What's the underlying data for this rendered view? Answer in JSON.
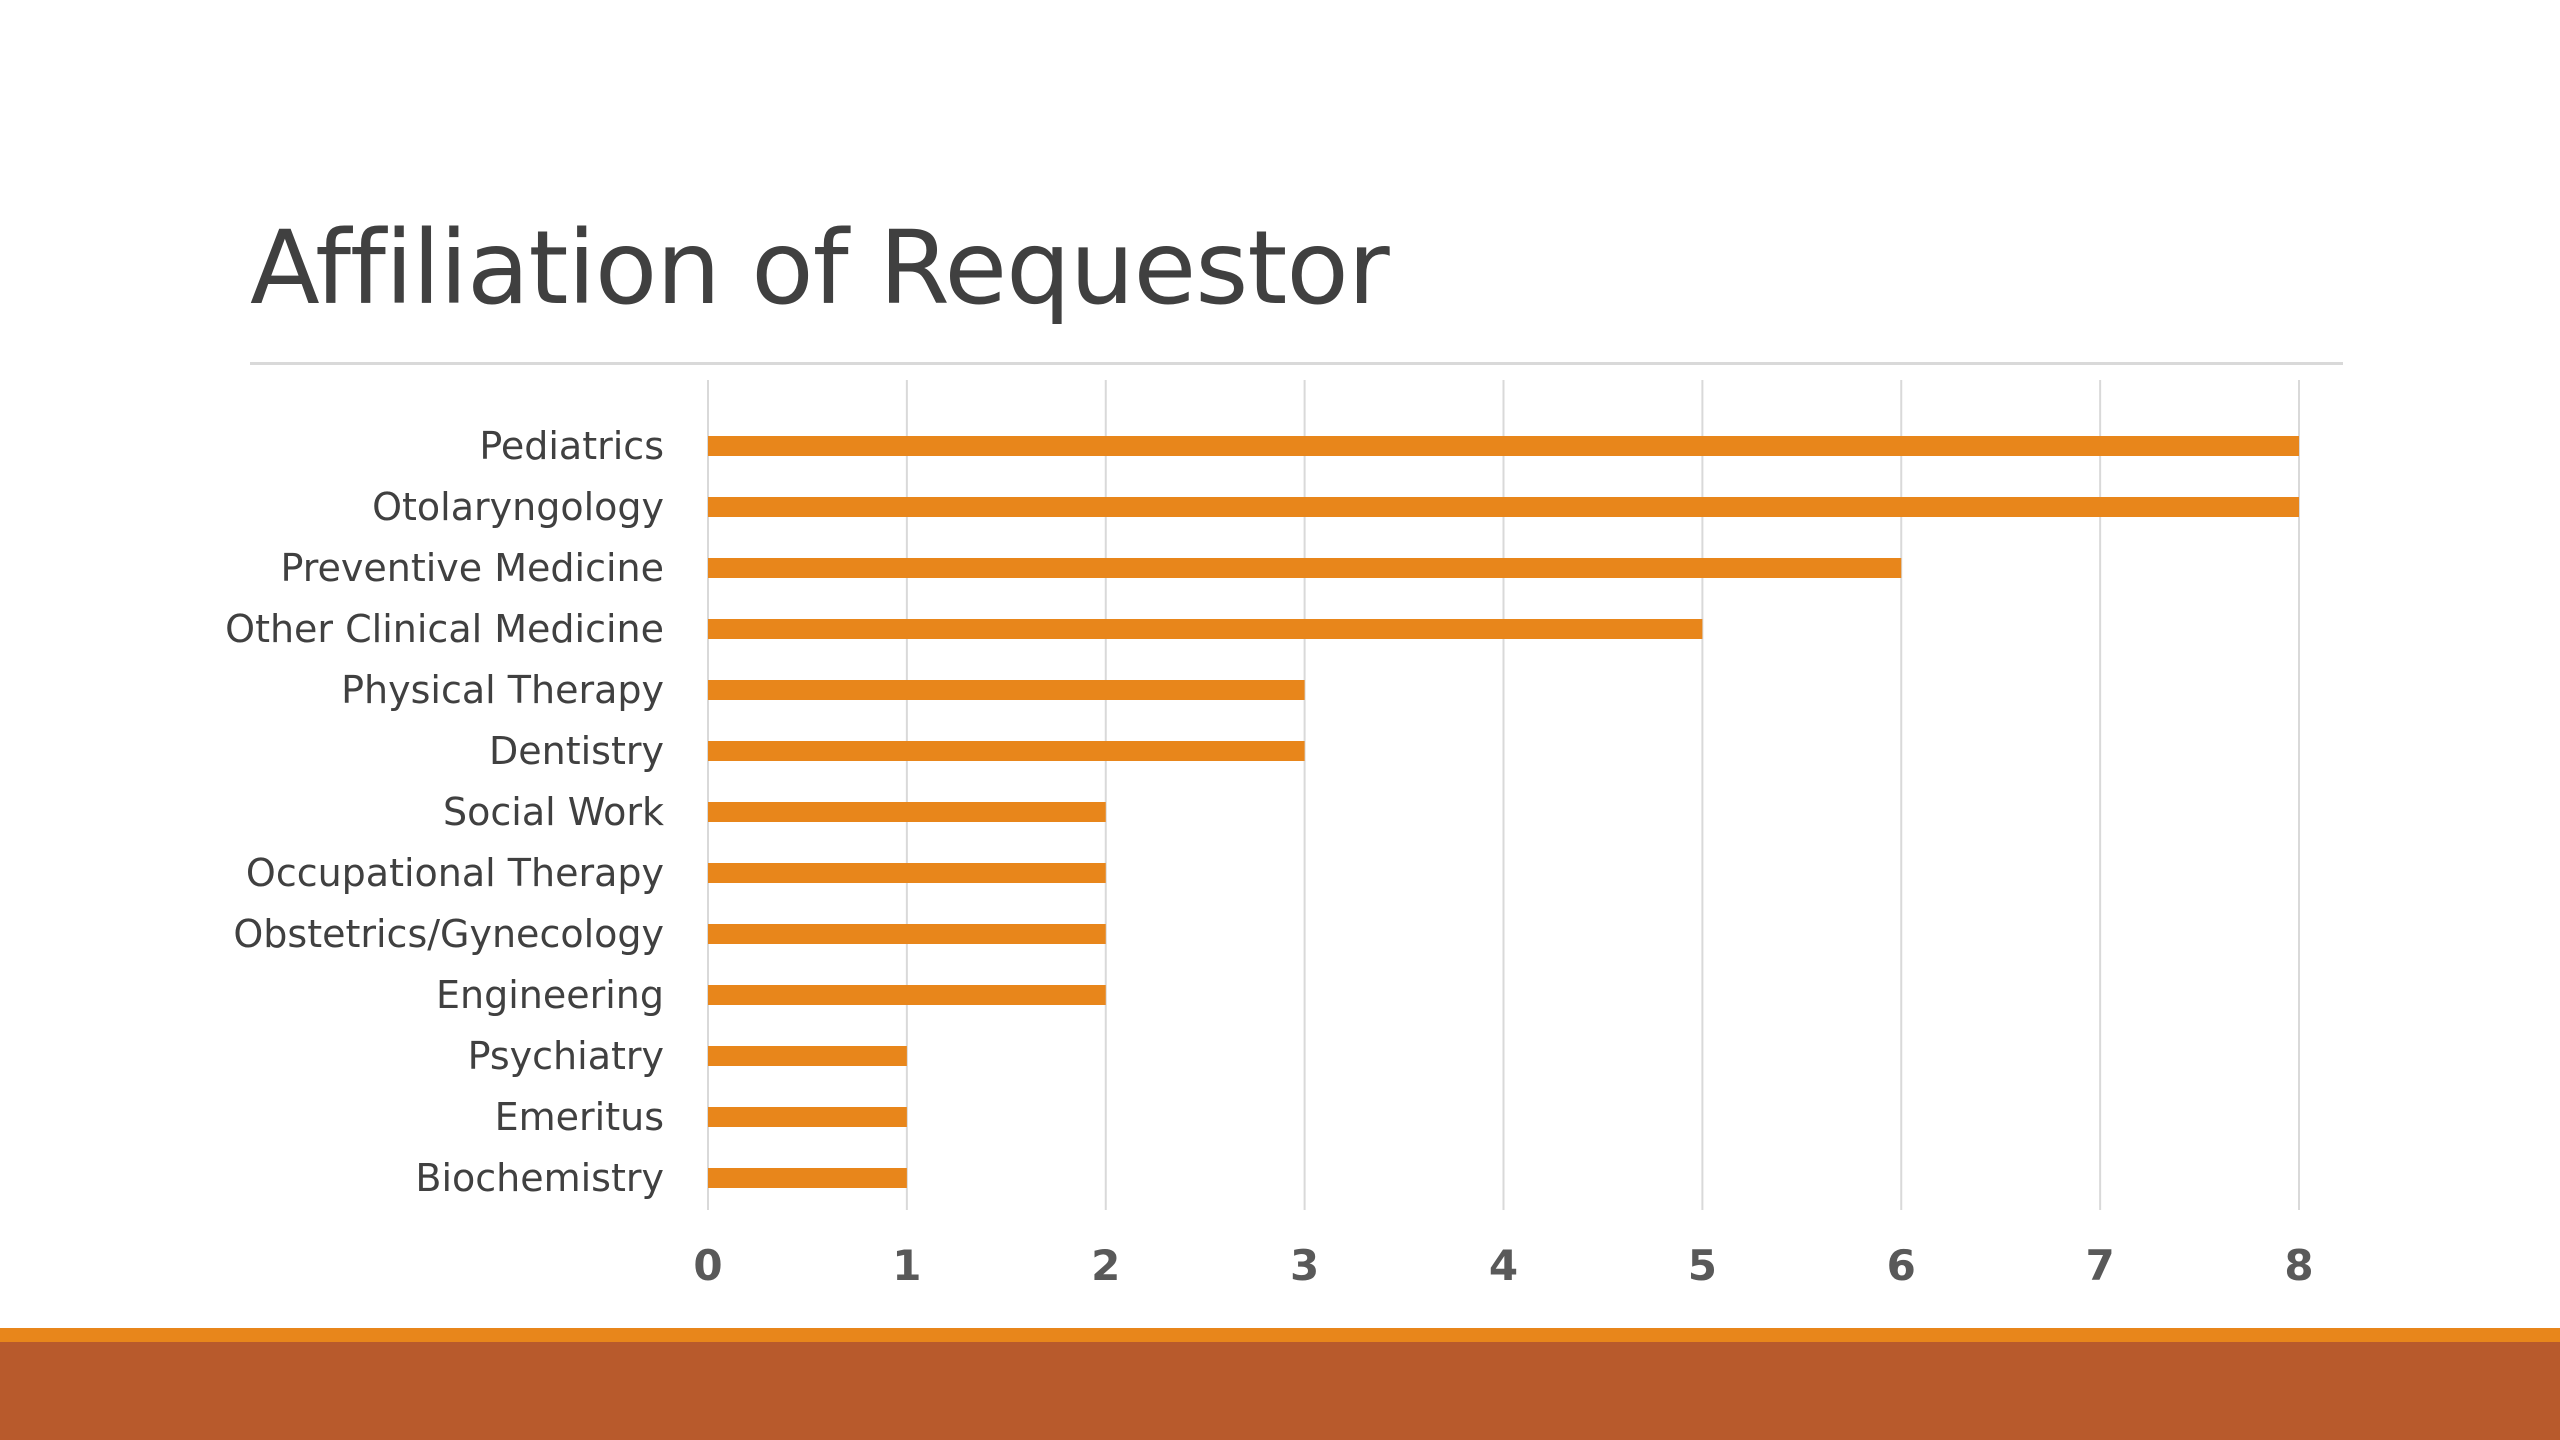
{
  "slide": {
    "title": "Affiliation of Requestor"
  },
  "colors": {
    "bar": "#e8861b",
    "gridline": "#d9d9d9",
    "category_text": "#404040",
    "tick_text": "#595959",
    "footer_accent": "#e8861b",
    "footer_band": "#b85a2c"
  },
  "chart_data": {
    "type": "bar",
    "orientation": "horizontal",
    "title": "",
    "xlabel": "",
    "ylabel": "",
    "categories": [
      "Pediatrics",
      "Otolaryngology",
      "Preventive Medicine",
      "Other Clinical Medicine",
      "Physical Therapy",
      "Dentistry",
      "Social Work",
      "Occupational Therapy",
      "Obstetrics/Gynecology",
      "Engineering",
      "Psychiatry",
      "Emeritus",
      "Biochemistry"
    ],
    "values": [
      8,
      8,
      6,
      5,
      3,
      3,
      2,
      2,
      2,
      2,
      1,
      1,
      1
    ],
    "xlim": [
      0,
      8
    ],
    "xticks": [
      0,
      1,
      2,
      3,
      4,
      5,
      6,
      7,
      8
    ],
    "grid": "vertical",
    "legend": "none"
  }
}
